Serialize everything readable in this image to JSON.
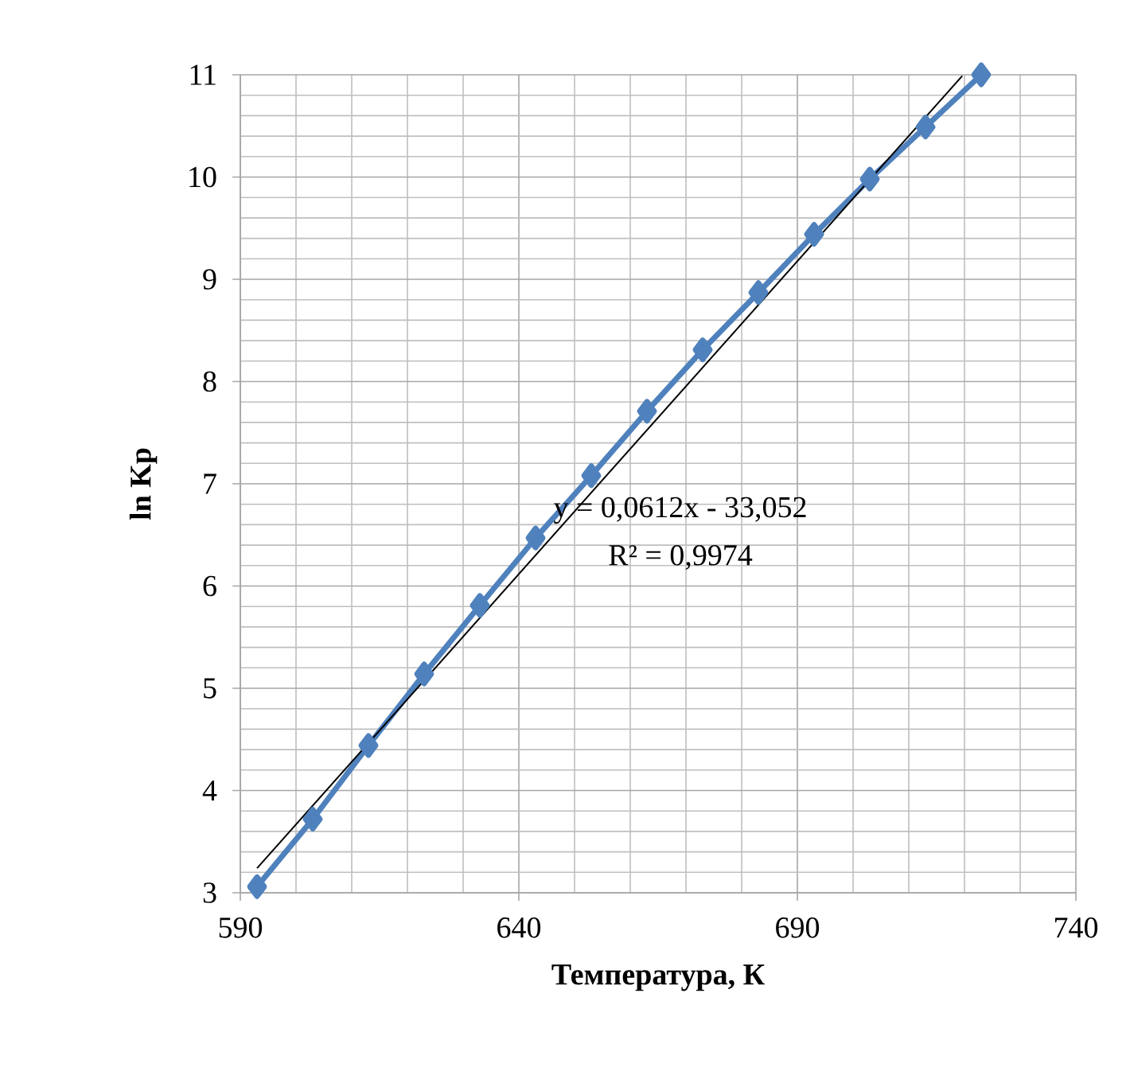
{
  "chart_data": {
    "type": "line",
    "xlabel": "Температура, К",
    "ylabel": "ln Kp",
    "annotations": [
      "y = 0,0612x - 33,052",
      "R² = 0,9974"
    ],
    "x": [
      593,
      603,
      613,
      623,
      633,
      643,
      653,
      663,
      673,
      683,
      693,
      703,
      713,
      723
    ],
    "series": [
      {
        "color": "#4f81bd",
        "values": [
          3.06,
          3.72,
          4.44,
          5.14,
          5.81,
          6.47,
          7.08,
          7.71,
          8.31,
          8.87,
          9.44,
          9.98,
          10.49,
          11.0
        ]
      },
      {
        "type": "line",
        "x": [
          593,
          719.6
        ],
        "values": [
          3.24,
          10.99
        ],
        "color": "#000000",
        "marker": "none"
      }
    ],
    "xlim": [
      590,
      740
    ],
    "ylim": [
      3,
      11
    ],
    "xticks": [
      590,
      640,
      690,
      740
    ],
    "yticks": [
      3,
      4,
      5,
      6,
      7,
      8,
      9,
      10,
      11
    ],
    "grid": true,
    "marker": "diamond"
  }
}
